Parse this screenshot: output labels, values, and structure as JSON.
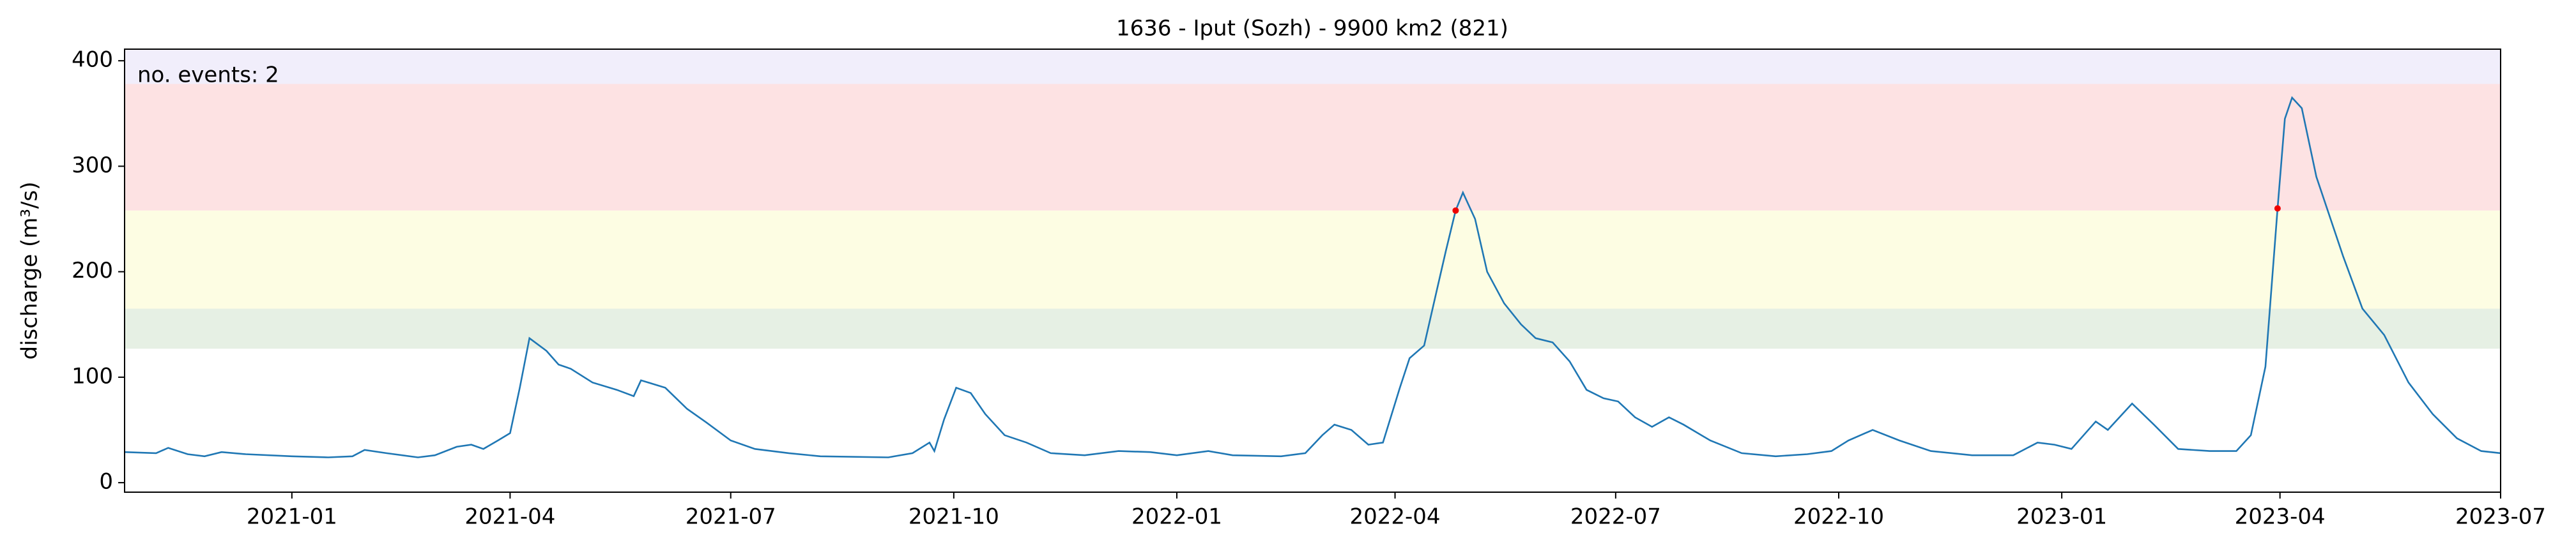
{
  "chart_data": {
    "type": "line",
    "title": "1636 - Iput (Sozh) - 9900 km2 (821)",
    "y_label": "discharge (m³/s)",
    "annotation": "no. events: 2",
    "annotation_color": "#d00000",
    "color": "#1f77b4",
    "xlim": [
      "2020-10-24",
      "2023-07-01"
    ],
    "xticks": [
      "2021-01",
      "2021-04",
      "2021-07",
      "2021-10",
      "2022-01",
      "2022-04",
      "2022-07",
      "2022-10",
      "2023-01",
      "2023-04",
      "2023-07"
    ],
    "ylim": [
      -9,
      411
    ],
    "yticks": [
      0,
      100,
      200,
      300,
      400
    ],
    "bands": [
      {
        "value": 127,
        "color": "#e6f0e4"
      },
      {
        "value": 165,
        "color": "#fdfde3"
      },
      {
        "value": 258,
        "color": "#fde2e3"
      },
      {
        "value": 378,
        "color": "#f1eefb"
      }
    ],
    "x": [
      "2020-10-24",
      "2020-11-06",
      "2020-11-11",
      "2020-11-19",
      "2020-11-26",
      "2020-12-03",
      "2020-12-13",
      "2021-01-01",
      "2021-01-16",
      "2021-01-26",
      "2021-01-31",
      "2021-02-09",
      "2021-02-22",
      "2021-03-01",
      "2021-03-10",
      "2021-03-16",
      "2021-03-21",
      "2021-03-27",
      "2021-04-01",
      "2021-04-05",
      "2021-04-09",
      "2021-04-16",
      "2021-04-21",
      "2021-04-26",
      "2021-05-05",
      "2021-05-15",
      "2021-05-22",
      "2021-05-25",
      "2021-05-28",
      "2021-06-04",
      "2021-06-13",
      "2021-06-21",
      "2021-07-01",
      "2021-07-11",
      "2021-07-25",
      "2021-08-07",
      "2021-09-04",
      "2021-09-14",
      "2021-09-21",
      "2021-09-23",
      "2021-09-27",
      "2021-10-02",
      "2021-10-08",
      "2021-10-14",
      "2021-10-22",
      "2021-10-31",
      "2021-11-10",
      "2021-11-24",
      "2021-12-08",
      "2021-12-21",
      "2022-01-01",
      "2022-01-14",
      "2022-01-24",
      "2022-02-13",
      "2022-02-23",
      "2022-03-02",
      "2022-03-07",
      "2022-03-14",
      "2022-03-21",
      "2022-03-27",
      "2022-04-03",
      "2022-04-07",
      "2022-04-13",
      "2022-04-18",
      "2022-04-22",
      "2022-04-26",
      "2022-04-29",
      "2022-05-04",
      "2022-05-09",
      "2022-05-16",
      "2022-05-23",
      "2022-05-29",
      "2022-06-05",
      "2022-06-12",
      "2022-06-19",
      "2022-06-26",
      "2022-07-02",
      "2022-07-09",
      "2022-07-16",
      "2022-07-23",
      "2022-07-29",
      "2022-08-09",
      "2022-08-22",
      "2022-09-05",
      "2022-09-18",
      "2022-09-28",
      "2022-10-05",
      "2022-10-15",
      "2022-10-26",
      "2022-11-08",
      "2022-11-25",
      "2022-12-12",
      "2022-12-22",
      "2022-12-29",
      "2023-01-05",
      "2023-01-15",
      "2023-01-20",
      "2023-01-30",
      "2023-02-08",
      "2023-02-18",
      "2023-03-03",
      "2023-03-14",
      "2023-03-20",
      "2023-03-26",
      "2023-03-31",
      "2023-04-03",
      "2023-04-06",
      "2023-04-10",
      "2023-04-16",
      "2023-04-27",
      "2023-05-05",
      "2023-05-14",
      "2023-05-24",
      "2023-06-03",
      "2023-06-13",
      "2023-06-23",
      "2023-07-01"
    ],
    "values": [
      29,
      28,
      33,
      27,
      25,
      29,
      27,
      25,
      24,
      25,
      31,
      28,
      24,
      26,
      34,
      36,
      32,
      40,
      47,
      90,
      137,
      125,
      112,
      108,
      95,
      88,
      82,
      97,
      95,
      90,
      70,
      57,
      40,
      32,
      28,
      25,
      24,
      28,
      38,
      30,
      60,
      90,
      85,
      65,
      45,
      38,
      28,
      26,
      30,
      29,
      26,
      30,
      26,
      25,
      28,
      45,
      55,
      50,
      36,
      38,
      90,
      118,
      130,
      180,
      220,
      258,
      275,
      250,
      200,
      170,
      150,
      137,
      133,
      115,
      88,
      80,
      77,
      62,
      53,
      62,
      55,
      40,
      28,
      25,
      27,
      30,
      40,
      50,
      40,
      30,
      26,
      26,
      38,
      36,
      32,
      58,
      50,
      75,
      55,
      32,
      30,
      30,
      45,
      110,
      260,
      345,
      365,
      355,
      290,
      215,
      165,
      140,
      95,
      65,
      42,
      30,
      28
    ],
    "events": {
      "color": "#ee0000",
      "x": [
        "2022-04-26",
        "2023-03-31"
      ],
      "values": [
        258,
        260
      ]
    }
  }
}
